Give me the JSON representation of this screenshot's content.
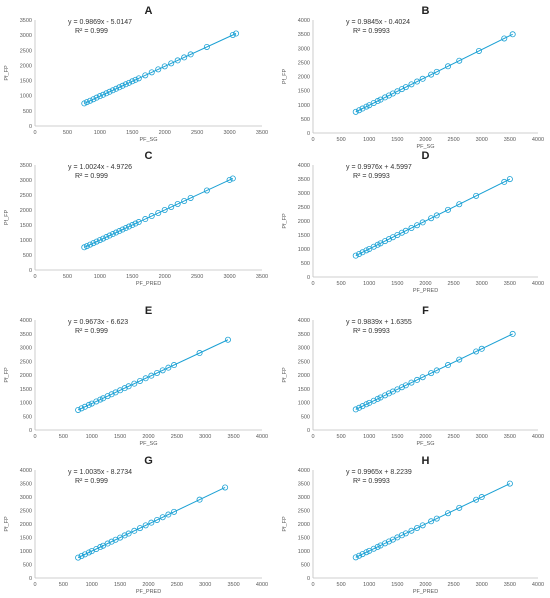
{
  "colors": {
    "series": "#1aa0d4",
    "axis": "#bfbfbf",
    "text": "#595959",
    "panel_label": "#222222"
  },
  "chart_data": [
    {
      "panel": "A",
      "type": "scatter",
      "xlabel": "PF_SG",
      "ylabel": "Pf_FP",
      "xlim": [
        0,
        3500
      ],
      "ylim": [
        0,
        3500
      ],
      "xticks": [
        "0",
        "500",
        "1000",
        "1500",
        "2000",
        "2500",
        "3000",
        "3500"
      ],
      "yticks": [
        "0",
        "500",
        "1000",
        "1500",
        "2000",
        "2500",
        "3000",
        "3500"
      ],
      "equation": "y = 0.9869x - 5.0147",
      "r2": "R² = 0.999",
      "fit": {
        "slope": 0.9869,
        "intercept": -5.0147
      },
      "x": [
        760,
        800,
        850,
        900,
        950,
        1000,
        1050,
        1100,
        1150,
        1200,
        1250,
        1300,
        1350,
        1400,
        1450,
        1500,
        1550,
        1600,
        1700,
        1800,
        1900,
        2000,
        2100,
        2200,
        2300,
        2400,
        2650,
        3050,
        3100
      ],
      "y": [
        745,
        790,
        835,
        885,
        935,
        985,
        1030,
        1080,
        1130,
        1180,
        1228,
        1278,
        1328,
        1378,
        1426,
        1476,
        1525,
        1574,
        1673,
        1772,
        1870,
        1969,
        2068,
        2166,
        2265,
        2364,
        2610,
        3005,
        3054
      ]
    },
    {
      "panel": "B",
      "type": "scatter",
      "xlabel": "PF_SG",
      "ylabel": "Pf_FP",
      "xlim": [
        0,
        4000
      ],
      "ylim": [
        0,
        4000
      ],
      "xticks": [
        "0",
        "500",
        "1000",
        "1500",
        "2000",
        "2500",
        "3000",
        "3500",
        "4000"
      ],
      "yticks": [
        "0",
        "500",
        "1000",
        "1500",
        "2000",
        "2500",
        "3000",
        "3500",
        "4000"
      ],
      "equation": "y = 0.9845x - 0.4024",
      "r2": "R² = 0.9993",
      "fit": {
        "slope": 0.9845,
        "intercept": -0.4024
      },
      "x": [
        760,
        820,
        880,
        950,
        1000,
        1080,
        1150,
        1200,
        1280,
        1350,
        1420,
        1500,
        1580,
        1650,
        1750,
        1850,
        1950,
        2100,
        2200,
        2400,
        2600,
        2950,
        3400,
        3550
      ],
      "y": [
        748,
        807,
        866,
        935,
        984,
        1063,
        1132,
        1181,
        1260,
        1329,
        1398,
        1476,
        1555,
        1624,
        1723,
        1821,
        1919,
        2067,
        2165,
        2362,
        2559,
        2904,
        3347,
        3495
      ]
    },
    {
      "panel": "C",
      "type": "scatter",
      "xlabel": "PF_PRED",
      "ylabel": "Pf_FP",
      "xlim": [
        0,
        3500
      ],
      "ylim": [
        0,
        3500
      ],
      "xticks": [
        "0",
        "500",
        "1000",
        "1500",
        "2000",
        "2500",
        "3000",
        "3500"
      ],
      "yticks": [
        "0",
        "500",
        "1000",
        "1500",
        "2000",
        "2500",
        "3000",
        "3500"
      ],
      "equation": "y = 1.0024x - 4.9726",
      "r2": "R² = 0.999",
      "fit": {
        "slope": 1.0024,
        "intercept": -4.9726
      },
      "x": [
        760,
        800,
        850,
        900,
        950,
        1000,
        1050,
        1100,
        1150,
        1200,
        1250,
        1300,
        1350,
        1400,
        1450,
        1500,
        1550,
        1600,
        1700,
        1800,
        1900,
        2000,
        2100,
        2200,
        2300,
        2400,
        2650,
        3000,
        3050
      ],
      "y": [
        757,
        797,
        847,
        897,
        947,
        997,
        1047,
        1098,
        1148,
        1198,
        1248,
        1298,
        1348,
        1398,
        1449,
        1499,
        1549,
        1599,
        1699,
        1799,
        1900,
        2000,
        2100,
        2200,
        2300,
        2401,
        2651,
        3002,
        3052
      ]
    },
    {
      "panel": "D",
      "type": "scatter",
      "xlabel": "PF_PRED",
      "ylabel": "Pf_FP",
      "xlim": [
        0,
        4000
      ],
      "ylim": [
        0,
        4000
      ],
      "xticks": [
        "0",
        "500",
        "1000",
        "1500",
        "2000",
        "2500",
        "3000",
        "3500",
        "4000"
      ],
      "yticks": [
        "0",
        "500",
        "1000",
        "1500",
        "2000",
        "2500",
        "3000",
        "3500",
        "4000"
      ],
      "equation": "y = 0.9976x + 4.5997",
      "r2": "R² = 0.9993",
      "fit": {
        "slope": 0.9976,
        "intercept": 4.5997
      },
      "x": [
        760,
        820,
        880,
        950,
        1000,
        1080,
        1150,
        1200,
        1280,
        1350,
        1420,
        1500,
        1580,
        1650,
        1750,
        1850,
        1950,
        2100,
        2200,
        2400,
        2600,
        2900,
        3400,
        3500
      ],
      "y": [
        763,
        823,
        883,
        952,
        1002,
        1082,
        1152,
        1202,
        1282,
        1351,
        1421,
        1501,
        1581,
        1651,
        1750,
        1850,
        1950,
        2100,
        2199,
        2399,
        2598,
        2898,
        3396,
        3496
      ]
    },
    {
      "panel": "E",
      "type": "scatter",
      "xlabel": "PF_SG",
      "ylabel": "Pf_FP",
      "xlim": [
        0,
        4000
      ],
      "ylim": [
        0,
        4000
      ],
      "xticks": [
        "0",
        "500",
        "1000",
        "1500",
        "2000",
        "2500",
        "3000",
        "3500",
        "4000"
      ],
      "yticks": [
        "0",
        "500",
        "1000",
        "1500",
        "2000",
        "2500",
        "3000",
        "3500",
        "4000"
      ],
      "equation": "y = 0.9673x - 6.623",
      "r2": "R² = 0.999",
      "fit": {
        "slope": 0.9673,
        "intercept": -6.623
      },
      "x": [
        760,
        820,
        880,
        950,
        1000,
        1080,
        1150,
        1200,
        1280,
        1350,
        1420,
        1500,
        1580,
        1650,
        1750,
        1850,
        1950,
        2050,
        2150,
        2250,
        2350,
        2450,
        2900,
        3400
      ],
      "y": [
        729,
        787,
        845,
        912,
        961,
        1038,
        1106,
        1154,
        1232,
        1299,
        1367,
        1444,
        1522,
        1589,
        1686,
        1783,
        1880,
        1976,
        2073,
        2170,
        2266,
        2363,
        2799,
        3282
      ]
    },
    {
      "panel": "F",
      "type": "scatter",
      "xlabel": "PF_SG",
      "ylabel": "Pf_FP",
      "xlim": [
        0,
        4000
      ],
      "ylim": [
        0,
        4000
      ],
      "xticks": [
        "0",
        "500",
        "1000",
        "1500",
        "2000",
        "2500",
        "3000",
        "3500",
        "4000"
      ],
      "yticks": [
        "0",
        "500",
        "1000",
        "1500",
        "2000",
        "2500",
        "3000",
        "3500",
        "4000"
      ],
      "equation": "y = 0.9839x + 1.6355",
      "r2": "R² = 0.9993",
      "fit": {
        "slope": 0.9839,
        "intercept": 1.6355
      },
      "x": [
        760,
        820,
        880,
        950,
        1000,
        1080,
        1150,
        1200,
        1280,
        1350,
        1420,
        1500,
        1580,
        1650,
        1750,
        1850,
        1950,
        2100,
        2200,
        2400,
        2600,
        2900,
        3000,
        3550
      ],
      "y": [
        749,
        808,
        867,
        936,
        986,
        1064,
        1133,
        1182,
        1261,
        1330,
        1399,
        1477,
        1556,
        1625,
        1723,
        1822,
        1920,
        2068,
        2166,
        2363,
        2560,
        2855,
        2953,
        3494
      ]
    },
    {
      "panel": "G",
      "type": "scatter",
      "xlabel": "PF_PRED",
      "ylabel": "Pf_FP",
      "xlim": [
        0,
        4000
      ],
      "ylim": [
        0,
        4000
      ],
      "xticks": [
        "0",
        "500",
        "1000",
        "1500",
        "2000",
        "2500",
        "3000",
        "3500",
        "4000"
      ],
      "yticks": [
        "0",
        "500",
        "1000",
        "1500",
        "2000",
        "2500",
        "3000",
        "3500",
        "4000"
      ],
      "equation": "y = 1.0035x - 8.2734",
      "r2": "R² = 0.999",
      "fit": {
        "slope": 1.0035,
        "intercept": -8.2734
      },
      "x": [
        760,
        820,
        880,
        950,
        1000,
        1080,
        1150,
        1200,
        1280,
        1350,
        1420,
        1500,
        1580,
        1650,
        1750,
        1850,
        1950,
        2050,
        2150,
        2250,
        2350,
        2450,
        2900,
        3350
      ],
      "y": [
        755,
        815,
        875,
        945,
        995,
        1075,
        1146,
        1196,
        1276,
        1346,
        1417,
        1497,
        1577,
        1647,
        1748,
        1848,
        1949,
        2049,
        2149,
        2250,
        2350,
        2450,
        2902,
        3353
      ]
    },
    {
      "panel": "H",
      "type": "scatter",
      "xlabel": "PF_PRED",
      "ylabel": "Pf_FP",
      "xlim": [
        0,
        4000
      ],
      "ylim": [
        0,
        4000
      ],
      "xticks": [
        "0",
        "500",
        "1000",
        "1500",
        "2000",
        "2500",
        "3000",
        "3500",
        "4000"
      ],
      "yticks": [
        "0",
        "500",
        "1000",
        "1500",
        "2000",
        "2500",
        "3000",
        "3500",
        "4000"
      ],
      "equation": "y = 0.9965x + 8.2239",
      "r2": "R² = 0.9993",
      "fit": {
        "slope": 0.9965,
        "intercept": 8.2239
      },
      "x": [
        760,
        820,
        880,
        950,
        1000,
        1080,
        1150,
        1200,
        1280,
        1350,
        1420,
        1500,
        1580,
        1650,
        1750,
        1850,
        1950,
        2100,
        2200,
        2400,
        2600,
        2900,
        3000,
        3500
      ],
      "y": [
        766,
        825,
        885,
        955,
        1005,
        1084,
        1154,
        1204,
        1284,
        1353,
        1423,
        1503,
        1583,
        1653,
        1752,
        1852,
        1951,
        2101,
        2200,
        2400,
        2599,
        2898,
        2998,
        3496
      ]
    }
  ]
}
